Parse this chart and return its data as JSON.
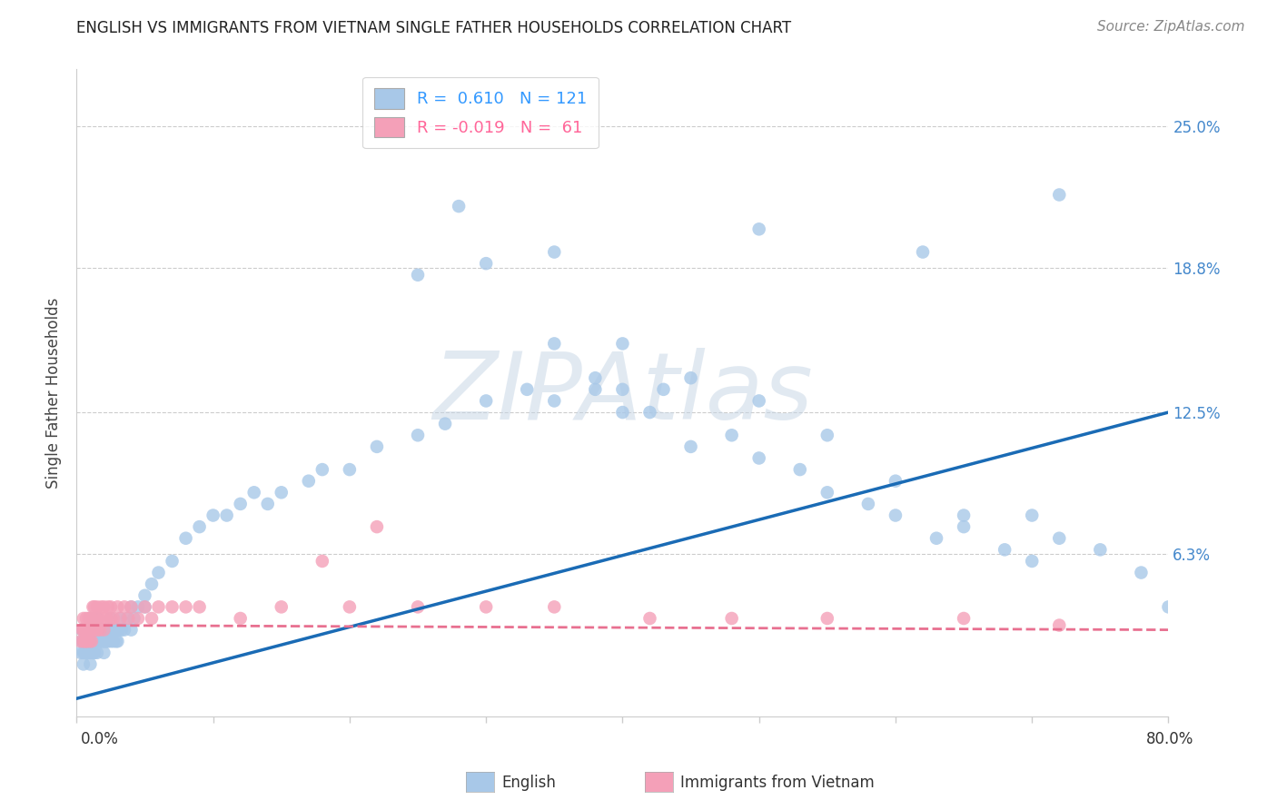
{
  "title": "ENGLISH VS IMMIGRANTS FROM VIETNAM SINGLE FATHER HOUSEHOLDS CORRELATION CHART",
  "source": "Source: ZipAtlas.com",
  "ylabel": "Single Father Households",
  "ytick_labels": [
    "6.3%",
    "12.5%",
    "18.8%",
    "25.0%"
  ],
  "ytick_values": [
    0.063,
    0.125,
    0.188,
    0.25
  ],
  "xmin": 0.0,
  "xmax": 0.8,
  "ymin": -0.008,
  "ymax": 0.275,
  "english_color": "#a8c8e8",
  "vietnam_color": "#f4a0b8",
  "english_line_color": "#1a6bb5",
  "vietnam_line_color": "#e87090",
  "legend_label1": "R =  0.610   N = 121",
  "legend_label2": "R = -0.019   N =  61",
  "legend_color1": "#3399ff",
  "legend_color2": "#ff6699",
  "watermark": "ZIPAtlas",
  "en_line_start_y": 0.0,
  "en_line_end_y": 0.125,
  "vn_line_start_y": 0.032,
  "vn_line_end_y": 0.03,
  "english_x": [
    0.003,
    0.004,
    0.004,
    0.005,
    0.005,
    0.005,
    0.005,
    0.006,
    0.006,
    0.007,
    0.007,
    0.007,
    0.008,
    0.008,
    0.008,
    0.009,
    0.009,
    0.009,
    0.01,
    0.01,
    0.01,
    0.01,
    0.01,
    0.011,
    0.011,
    0.011,
    0.012,
    0.012,
    0.012,
    0.013,
    0.013,
    0.013,
    0.014,
    0.014,
    0.015,
    0.015,
    0.015,
    0.015,
    0.016,
    0.016,
    0.017,
    0.017,
    0.018,
    0.018,
    0.019,
    0.019,
    0.02,
    0.02,
    0.02,
    0.021,
    0.021,
    0.022,
    0.022,
    0.023,
    0.024,
    0.025,
    0.025,
    0.026,
    0.027,
    0.028,
    0.029,
    0.03,
    0.03,
    0.031,
    0.032,
    0.033,
    0.035,
    0.037,
    0.04,
    0.04,
    0.042,
    0.045,
    0.05,
    0.05,
    0.055,
    0.06,
    0.07,
    0.08,
    0.09,
    0.1,
    0.11,
    0.12,
    0.13,
    0.14,
    0.15,
    0.17,
    0.18,
    0.2,
    0.22,
    0.25,
    0.27,
    0.3,
    0.33,
    0.35,
    0.38,
    0.4,
    0.42,
    0.45,
    0.48,
    0.5,
    0.53,
    0.55,
    0.58,
    0.6,
    0.63,
    0.65,
    0.68,
    0.7,
    0.72,
    0.75,
    0.78,
    0.8,
    0.3,
    0.35,
    0.4,
    0.45,
    0.5,
    0.55,
    0.6,
    0.65,
    0.7
  ],
  "english_y": [
    0.02,
    0.025,
    0.03,
    0.02,
    0.025,
    0.03,
    0.015,
    0.02,
    0.025,
    0.02,
    0.025,
    0.03,
    0.025,
    0.02,
    0.03,
    0.025,
    0.03,
    0.02,
    0.025,
    0.03,
    0.02,
    0.035,
    0.015,
    0.025,
    0.03,
    0.02,
    0.025,
    0.03,
    0.02,
    0.025,
    0.03,
    0.02,
    0.025,
    0.03,
    0.025,
    0.03,
    0.02,
    0.035,
    0.025,
    0.03,
    0.025,
    0.03,
    0.025,
    0.03,
    0.025,
    0.03,
    0.025,
    0.03,
    0.02,
    0.025,
    0.03,
    0.025,
    0.03,
    0.025,
    0.03,
    0.025,
    0.035,
    0.03,
    0.025,
    0.03,
    0.025,
    0.03,
    0.025,
    0.03,
    0.035,
    0.03,
    0.03,
    0.035,
    0.03,
    0.04,
    0.035,
    0.04,
    0.04,
    0.045,
    0.05,
    0.055,
    0.06,
    0.07,
    0.075,
    0.08,
    0.08,
    0.085,
    0.09,
    0.085,
    0.09,
    0.095,
    0.1,
    0.1,
    0.11,
    0.115,
    0.12,
    0.13,
    0.135,
    0.13,
    0.135,
    0.125,
    0.125,
    0.11,
    0.115,
    0.105,
    0.1,
    0.09,
    0.085,
    0.08,
    0.07,
    0.075,
    0.065,
    0.06,
    0.07,
    0.065,
    0.055,
    0.04,
    0.19,
    0.195,
    0.155,
    0.14,
    0.13,
    0.115,
    0.095,
    0.08,
    0.08
  ],
  "english_outliers_x": [
    0.5,
    0.62,
    0.72,
    0.35,
    0.38,
    0.4,
    0.43,
    0.25,
    0.28
  ],
  "english_outliers_y": [
    0.205,
    0.195,
    0.22,
    0.155,
    0.14,
    0.135,
    0.135,
    0.185,
    0.215
  ],
  "vietnam_x": [
    0.003,
    0.004,
    0.005,
    0.005,
    0.005,
    0.006,
    0.006,
    0.007,
    0.007,
    0.008,
    0.008,
    0.009,
    0.009,
    0.01,
    0.01,
    0.01,
    0.011,
    0.011,
    0.012,
    0.012,
    0.013,
    0.013,
    0.014,
    0.015,
    0.015,
    0.016,
    0.017,
    0.018,
    0.019,
    0.02,
    0.02,
    0.022,
    0.023,
    0.025,
    0.025,
    0.027,
    0.03,
    0.032,
    0.035,
    0.038,
    0.04,
    0.045,
    0.05,
    0.055,
    0.06,
    0.07,
    0.08,
    0.09,
    0.12,
    0.15,
    0.2,
    0.25,
    0.3,
    0.35,
    0.42,
    0.55,
    0.65,
    0.72,
    0.48,
    0.18,
    0.22
  ],
  "vietnam_y": [
    0.025,
    0.03,
    0.025,
    0.03,
    0.035,
    0.025,
    0.03,
    0.025,
    0.035,
    0.03,
    0.025,
    0.03,
    0.035,
    0.025,
    0.03,
    0.035,
    0.025,
    0.035,
    0.03,
    0.04,
    0.03,
    0.04,
    0.035,
    0.03,
    0.04,
    0.035,
    0.03,
    0.04,
    0.035,
    0.03,
    0.04,
    0.035,
    0.04,
    0.035,
    0.04,
    0.035,
    0.04,
    0.035,
    0.04,
    0.035,
    0.04,
    0.035,
    0.04,
    0.035,
    0.04,
    0.04,
    0.04,
    0.04,
    0.035,
    0.04,
    0.04,
    0.04,
    0.04,
    0.04,
    0.035,
    0.035,
    0.035,
    0.032,
    0.035,
    0.06,
    0.075
  ],
  "background_color": "#ffffff",
  "grid_color": "#cccccc",
  "spine_color": "#cccccc",
  "title_fontsize": 12,
  "axis_label_fontsize": 12,
  "tick_fontsize": 12
}
